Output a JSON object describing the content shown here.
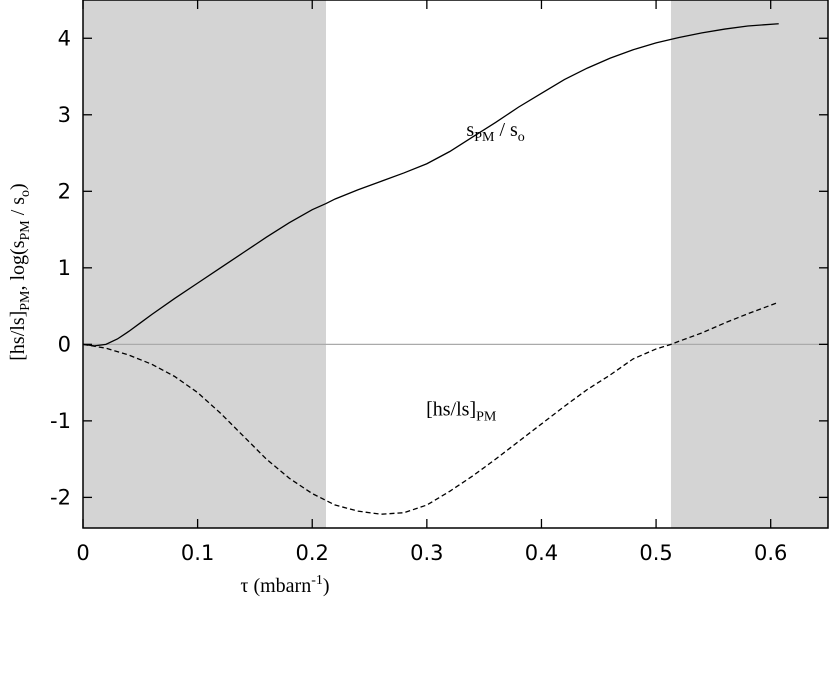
{
  "chart_data": {
    "type": "line",
    "title": "",
    "xlabel": {
      "main": "τ (mbarn",
      "sup": "-1",
      "end": ")"
    },
    "ylabel": {
      "part1": "[hs/ls]",
      "part1_sub": "PM",
      "part2": ", log(s",
      "part2_sub": "PM",
      "part3": " / s",
      "part3_sub": "o",
      "part4": ")"
    },
    "xlim": [
      0,
      0.65
    ],
    "ylim": [
      -2.4,
      4.5
    ],
    "x_ticks": [
      0,
      0.1,
      0.2,
      0.3,
      0.4,
      0.5,
      0.6
    ],
    "x_tick_labels": [
      "0",
      "0.1",
      "0.2",
      "0.3",
      "0.4",
      "0.5",
      "0.6"
    ],
    "y_ticks": [
      -2,
      -1,
      0,
      1,
      2,
      3,
      4
    ],
    "y_tick_labels": [
      "-2",
      "-1",
      "0",
      "1",
      "2",
      "3",
      "4"
    ],
    "grid": false,
    "shaded_regions": [
      {
        "x_from": 0,
        "x_to": 0.212,
        "color": "#d4d4d4"
      },
      {
        "x_from": 0.513,
        "x_to": 0.65,
        "color": "#d4d4d4"
      }
    ],
    "zero_line_color": "#aaaaaa",
    "series": [
      {
        "style": "solid",
        "color": "#000000",
        "label": {
          "main": "s",
          "main_sub": "PM",
          "sep": " / s",
          "sep_sub": "o",
          "at_x": 0.36,
          "at_y": 2.72
        },
        "x": [
          0,
          0.01,
          0.02,
          0.03,
          0.04,
          0.05,
          0.06,
          0.08,
          0.1,
          0.12,
          0.14,
          0.16,
          0.18,
          0.2,
          0.212,
          0.22,
          0.24,
          0.26,
          0.28,
          0.3,
          0.32,
          0.34,
          0.36,
          0.38,
          0.4,
          0.42,
          0.44,
          0.46,
          0.48,
          0.5,
          0.52,
          0.54,
          0.56,
          0.58,
          0.607
        ],
        "y": [
          0,
          -0.02,
          0.0,
          0.07,
          0.17,
          0.28,
          0.39,
          0.6,
          0.8,
          1.0,
          1.2,
          1.4,
          1.59,
          1.76,
          1.84,
          1.9,
          2.02,
          2.13,
          2.24,
          2.36,
          2.52,
          2.71,
          2.9,
          3.1,
          3.28,
          3.46,
          3.61,
          3.74,
          3.85,
          3.94,
          4.01,
          4.07,
          4.12,
          4.16,
          4.19
        ]
      },
      {
        "style": "dashed",
        "color": "#000000",
        "label": {
          "main": "[hs/ls]",
          "main_sub": "PM",
          "at_x": 0.33,
          "at_y": -0.93
        },
        "x": [
          0,
          0.02,
          0.04,
          0.06,
          0.08,
          0.1,
          0.12,
          0.14,
          0.16,
          0.18,
          0.2,
          0.212,
          0.22,
          0.24,
          0.26,
          0.28,
          0.3,
          0.32,
          0.34,
          0.36,
          0.38,
          0.4,
          0.42,
          0.44,
          0.46,
          0.48,
          0.5,
          0.513,
          0.52,
          0.54,
          0.56,
          0.58,
          0.607
        ],
        "y": [
          0,
          -0.05,
          -0.14,
          -0.26,
          -0.42,
          -0.63,
          -0.9,
          -1.2,
          -1.5,
          -1.75,
          -1.95,
          -2.04,
          -2.1,
          -2.18,
          -2.22,
          -2.2,
          -2.1,
          -1.92,
          -1.72,
          -1.5,
          -1.27,
          -1.04,
          -0.81,
          -0.59,
          -0.4,
          -0.19,
          -0.06,
          0.0,
          0.04,
          0.15,
          0.28,
          0.4,
          0.55
        ]
      }
    ]
  }
}
